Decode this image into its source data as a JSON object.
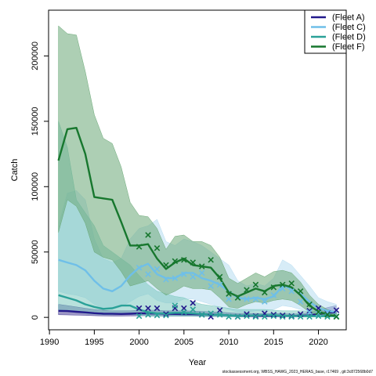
{
  "chart_data": {
    "type": "line",
    "title": "",
    "xlabel": "Year",
    "ylabel": "Catch",
    "xlim": [
      1989.9,
      2023.1
    ],
    "ylim": [
      -9500,
      235000
    ],
    "x_ticks": [
      1990,
      1995,
      2000,
      2005,
      2010,
      2015,
      2020
    ],
    "y_ticks": [
      0,
      50000,
      100000,
      150000,
      200000
    ],
    "grid": false,
    "legend_position": "top-right",
    "footer": "stockassessment.org, WBSS_HAWG_2023_HERAS_base, r17469 , git:3c872568b0d7",
    "series": [
      {
        "name": "(Fleet A)",
        "color": "#231a8c",
        "band_color": "#4b4296",
        "years": [
          1991,
          1992,
          1993,
          1994,
          1995,
          1996,
          1997,
          1998,
          1999,
          2000,
          2001,
          2002,
          2003,
          2004,
          2005,
          2006,
          2007,
          2008,
          2009,
          2010,
          2011,
          2012,
          2013,
          2014,
          2015,
          2016,
          2017,
          2018,
          2019,
          2020,
          2021,
          2022
        ],
        "fit": [
          5000,
          4800,
          4300,
          3800,
          3200,
          2800,
          2700,
          2600,
          2800,
          3000,
          3000,
          2900,
          2700,
          2600,
          2500,
          2400,
          2300,
          2100,
          2000,
          1500,
          1200,
          1300,
          1200,
          1100,
          1300,
          1200,
          1100,
          1200,
          1500,
          2500,
          3500,
          4000
        ],
        "low": [
          2000,
          1900,
          1700,
          1500,
          1300,
          1100,
          1000,
          1000,
          1100,
          1200,
          1200,
          1100,
          1000,
          1000,
          900,
          900,
          800,
          800,
          700,
          500,
          400,
          400,
          400,
          400,
          400,
          400,
          400,
          400,
          500,
          900,
          1300,
          1500
        ],
        "high": [
          10000,
          9000,
          8000,
          7000,
          6000,
          5500,
          5000,
          5000,
          5000,
          5500,
          5500,
          5500,
          5000,
          5000,
          5000,
          4800,
          4500,
          4200,
          4000,
          3500,
          3000,
          3000,
          3000,
          2800,
          3000,
          2800,
          2500,
          2800,
          3500,
          5500,
          7500,
          9000
        ],
        "obs_years": [
          2000,
          2001,
          2002,
          2003,
          2004,
          2005,
          2006,
          2007,
          2008,
          2009,
          2011,
          2012,
          2013,
          2014,
          2015,
          2016,
          2017,
          2018,
          2019,
          2020,
          2021,
          2022
        ],
        "obs": [
          7000,
          7000,
          7000,
          2500,
          7000,
          7000,
          11000,
          2000,
          500,
          5500,
          500,
          2500,
          1000,
          3000,
          2000,
          1500,
          1000,
          2500,
          5000,
          7000,
          3500,
          5500
        ]
      },
      {
        "name": "(Fleet C)",
        "color": "#6fbfe8",
        "band_color": "#b7dcf1",
        "years": [
          1991,
          1992,
          1993,
          1994,
          1995,
          1996,
          1997,
          1998,
          1999,
          2000,
          2001,
          2002,
          2003,
          2004,
          2005,
          2006,
          2007,
          2008,
          2009,
          2010,
          2011,
          2012,
          2013,
          2014,
          2015,
          2016,
          2017,
          2018,
          2019,
          2020,
          2021,
          2022
        ],
        "fit": [
          44000,
          42000,
          40000,
          36000,
          28000,
          22000,
          20000,
          24000,
          32000,
          38000,
          41000,
          33000,
          30000,
          30000,
          34000,
          34000,
          30000,
          28000,
          25000,
          20000,
          15000,
          14000,
          15000,
          14000,
          16000,
          24000,
          22000,
          18000,
          12000,
          7000,
          5000,
          4000
        ],
        "low": [
          20000,
          18000,
          17000,
          15000,
          10000,
          7000,
          6000,
          8000,
          12000,
          16000,
          18000,
          13000,
          11000,
          11000,
          14000,
          14000,
          12000,
          10000,
          8000,
          6000,
          4000,
          4000,
          5000,
          5000,
          6000,
          9000,
          8000,
          6000,
          4000,
          2000,
          1500,
          1000
        ],
        "high": [
          70000,
          95000,
          97000,
          90000,
          60000,
          45000,
          42000,
          45000,
          60000,
          68000,
          70000,
          75000,
          58000,
          55000,
          60000,
          58000,
          55000,
          50000,
          45000,
          40000,
          28000,
          24000,
          26000,
          24000,
          30000,
          44000,
          40000,
          32000,
          24000,
          15000,
          12000,
          10000
        ],
        "obs_years": [
          2000,
          2001,
          2002,
          2003,
          2004,
          2005,
          2006,
          2007,
          2008,
          2009,
          2010,
          2011,
          2012,
          2013,
          2014,
          2015,
          2016,
          2017,
          2018,
          2019,
          2020,
          2021,
          2022
        ],
        "obs": [
          38000,
          33000,
          37000,
          29000,
          30000,
          33000,
          31000,
          34000,
          24000,
          25000,
          14000,
          15000,
          14000,
          14000,
          12000,
          17000,
          22000,
          20000,
          12000,
          4000,
          3000,
          4000,
          1000
        ]
      },
      {
        "name": "(Fleet D)",
        "color": "#2aa198",
        "band_color": "#7ec9c0",
        "years": [
          1991,
          1992,
          1993,
          1994,
          1995,
          1996,
          1997,
          1998,
          1999,
          2000,
          2001,
          2002,
          2003,
          2004,
          2005,
          2006,
          2007,
          2008,
          2009,
          2010,
          2011,
          2012,
          2013,
          2014,
          2015,
          2016,
          2017,
          2018,
          2019,
          2020,
          2021,
          2022
        ],
        "fit": [
          17000,
          15000,
          13000,
          10000,
          8000,
          6500,
          7000,
          9000,
          9000,
          6000,
          4000,
          3000,
          3000,
          3500,
          3500,
          3000,
          2500,
          2000,
          2000,
          1500,
          1200,
          1200,
          1500,
          1500,
          1500,
          1200,
          1000,
          1000,
          1000,
          1000,
          1000,
          1000
        ],
        "low": [
          6000,
          5000,
          4000,
          3000,
          2500,
          2000,
          2000,
          2500,
          2500,
          1500,
          1000,
          800,
          800,
          900,
          900,
          800,
          700,
          500,
          500,
          400,
          300,
          300,
          400,
          400,
          400,
          300,
          300,
          300,
          300,
          300,
          300,
          300
        ],
        "high": [
          150000,
          130000,
          90000,
          80000,
          70000,
          55000,
          50000,
          45000,
          40000,
          32000,
          25000,
          20000,
          18000,
          16000,
          15000,
          12000,
          10000,
          9000,
          8000,
          7000,
          6000,
          6000,
          6000,
          6000,
          5500,
          5000,
          5000,
          5000,
          4500,
          4500,
          4500,
          4500
        ],
        "obs_years": [
          2000,
          2001,
          2002,
          2003,
          2004,
          2005,
          2006,
          2007,
          2008,
          2009,
          2010,
          2011,
          2012,
          2013,
          2014,
          2015,
          2016,
          2017,
          2018,
          2019,
          2020,
          2021,
          2022
        ],
        "obs": [
          1000,
          2000,
          1500,
          1500,
          9000,
          4000,
          6000,
          2000,
          3000,
          2000,
          500,
          500,
          1000,
          500,
          500,
          1000,
          500,
          500,
          500,
          500,
          1000,
          500,
          500
        ]
      },
      {
        "name": "(Fleet F)",
        "color": "#17772e",
        "band_color": "#6aa877",
        "years": [
          1991,
          1992,
          1993,
          1994,
          1995,
          1996,
          1997,
          1998,
          1999,
          2000,
          2001,
          2002,
          2003,
          2004,
          2005,
          2006,
          2007,
          2008,
          2009,
          2010,
          2011,
          2012,
          2013,
          2014,
          2015,
          2016,
          2017,
          2018,
          2019,
          2020,
          2021,
          2022
        ],
        "fit": [
          120000,
          144000,
          145000,
          125000,
          92000,
          91000,
          90000,
          73000,
          55000,
          55000,
          56000,
          45000,
          37000,
          42000,
          45000,
          40000,
          39000,
          38000,
          30000,
          19000,
          16000,
          19000,
          22000,
          20000,
          24000,
          25000,
          23000,
          17000,
          9000,
          4500,
          2000,
          1000
        ],
        "low": [
          65000,
          90000,
          85000,
          72000,
          50000,
          46000,
          44000,
          35000,
          24000,
          26000,
          28000,
          22000,
          17000,
          20000,
          24000,
          22000,
          22000,
          21000,
          15000,
          8000,
          7000,
          10000,
          12000,
          11000,
          13000,
          14000,
          13000,
          9000,
          4000,
          1800,
          800,
          400
        ],
        "high": [
          223000,
          217000,
          216000,
          188000,
          155000,
          137000,
          133000,
          115000,
          88000,
          78000,
          77000,
          68000,
          52000,
          62000,
          63000,
          58000,
          58000,
          55000,
          46000,
          30000,
          26000,
          30000,
          34000,
          31000,
          35000,
          36000,
          34000,
          27000,
          17000,
          10000,
          6000,
          4000
        ],
        "obs_years": [
          2000,
          2001,
          2002,
          2003,
          2004,
          2005,
          2006,
          2007,
          2008,
          2009,
          2010,
          2011,
          2012,
          2013,
          2014,
          2015,
          2016,
          2017,
          2018,
          2019,
          2020,
          2021,
          2022
        ],
        "obs": [
          54000,
          63000,
          53000,
          40000,
          43000,
          44000,
          42000,
          39000,
          44000,
          31000,
          18000,
          15000,
          21000,
          25000,
          19000,
          23000,
          25000,
          26000,
          20000,
          10000,
          4000,
          2000,
          500
        ]
      }
    ]
  }
}
